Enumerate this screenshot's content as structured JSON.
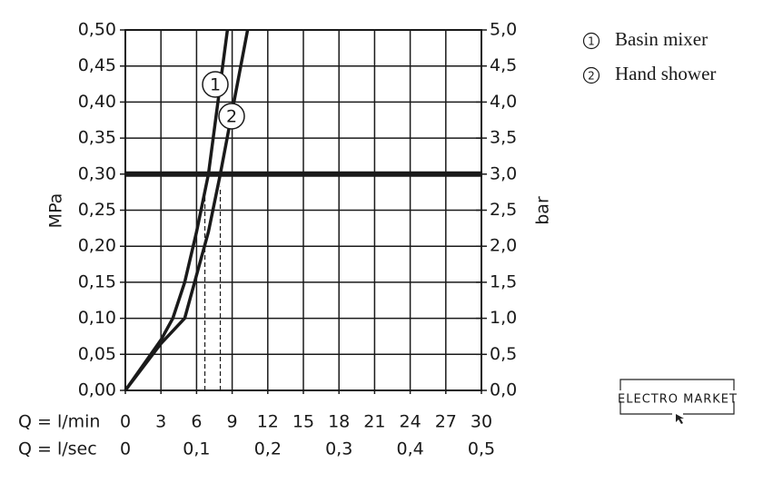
{
  "chart_data": {
    "type": "line",
    "ylabel": "MPa",
    "y2label": "bar",
    "xlabel": "Q = l/min",
    "x2label": "Q = l/sec",
    "xlim": [
      0,
      30
    ],
    "xticks": [
      0,
      3,
      6,
      9,
      12,
      15,
      18,
      21,
      24,
      27,
      30
    ],
    "x2lim": [
      0,
      0.5
    ],
    "x2ticks": [
      0,
      {
        "value": 0.1,
        "label": "0,1"
      },
      {
        "value": 0.2,
        "label": "0,2"
      },
      {
        "value": 0.3,
        "label": "0,3"
      },
      {
        "value": 0.4,
        "label": "0,4"
      },
      {
        "value": 0.5,
        "label": "0,5"
      }
    ],
    "ylim": [
      0,
      0.5
    ],
    "yticks": [
      {
        "value": 0,
        "label": "0,00"
      },
      {
        "value": 0.05,
        "label": "0,05"
      },
      {
        "value": 0.1,
        "label": "0,10"
      },
      {
        "value": 0.15,
        "label": "0,15"
      },
      {
        "value": 0.2,
        "label": "0,20"
      },
      {
        "value": 0.25,
        "label": "0,25"
      },
      {
        "value": 0.3,
        "label": "0,30"
      },
      {
        "value": 0.35,
        "label": "0,35"
      },
      {
        "value": 0.4,
        "label": "0,40"
      },
      {
        "value": 0.45,
        "label": "0,45"
      },
      {
        "value": 0.5,
        "label": "0,50"
      }
    ],
    "y2lim": [
      0,
      5
    ],
    "y2ticks": [
      {
        "value": 0,
        "label": "0,0"
      },
      {
        "value": 0.5,
        "label": "0,5"
      },
      {
        "value": 1,
        "label": "1,0"
      },
      {
        "value": 1.5,
        "label": "1,5"
      },
      {
        "value": 2,
        "label": "2,0"
      },
      {
        "value": 2.5,
        "label": "2,5"
      },
      {
        "value": 3,
        "label": "3,0"
      },
      {
        "value": 3.5,
        "label": "3,5"
      },
      {
        "value": 4,
        "label": "4,0"
      },
      {
        "value": 4.5,
        "label": "4,5"
      },
      {
        "value": 5,
        "label": "5,0"
      }
    ],
    "grid": true,
    "reference_line": 0.3,
    "dashed_x": [
      6.7,
      8.0
    ],
    "series": [
      {
        "name": "Basin mixer",
        "label": "1",
        "color": "#1a1a1a",
        "x": [
          0,
          3,
          4,
          5,
          6,
          7,
          8.6
        ],
        "values": [
          0,
          0.07,
          0.1,
          0.15,
          0.22,
          0.3,
          0.5
        ]
      },
      {
        "name": "Hand shower",
        "label": "2",
        "color": "#1a1a1a",
        "x": [
          0,
          3,
          5,
          6,
          7,
          8,
          10.3
        ],
        "values": [
          0,
          0.065,
          0.1,
          0.16,
          0.22,
          0.3,
          0.5
        ]
      }
    ],
    "watermark": "ELECTRO MARKET"
  }
}
